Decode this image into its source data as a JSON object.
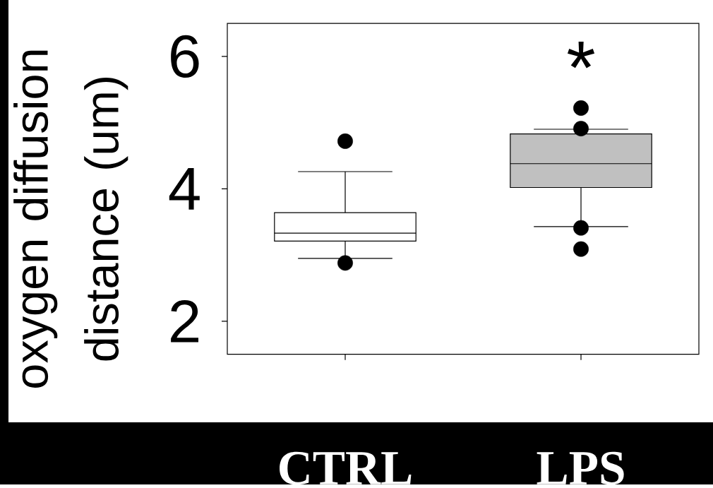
{
  "chart_data": {
    "type": "box",
    "ylabel": "oxygen diffusion distance (um)",
    "categories": [
      "CTRL",
      "LPS"
    ],
    "boxes": [
      {
        "low": 2.95,
        "q1": 3.21,
        "median": 3.33,
        "q3": 3.64,
        "high": 4.26,
        "outliers": [
          4.72,
          2.88
        ]
      },
      {
        "low": 3.43,
        "q1": 4.02,
        "median": 4.38,
        "q3": 4.83,
        "high": 4.9,
        "outliers": [
          5.22,
          4.91,
          3.41,
          3.09
        ]
      }
    ],
    "colors": [
      "#ffffff",
      "#c0c0c0"
    ],
    "ylim": [
      1.5,
      6.5
    ],
    "yticks": [
      2,
      4,
      6
    ],
    "annotations": [
      "*"
    ]
  }
}
